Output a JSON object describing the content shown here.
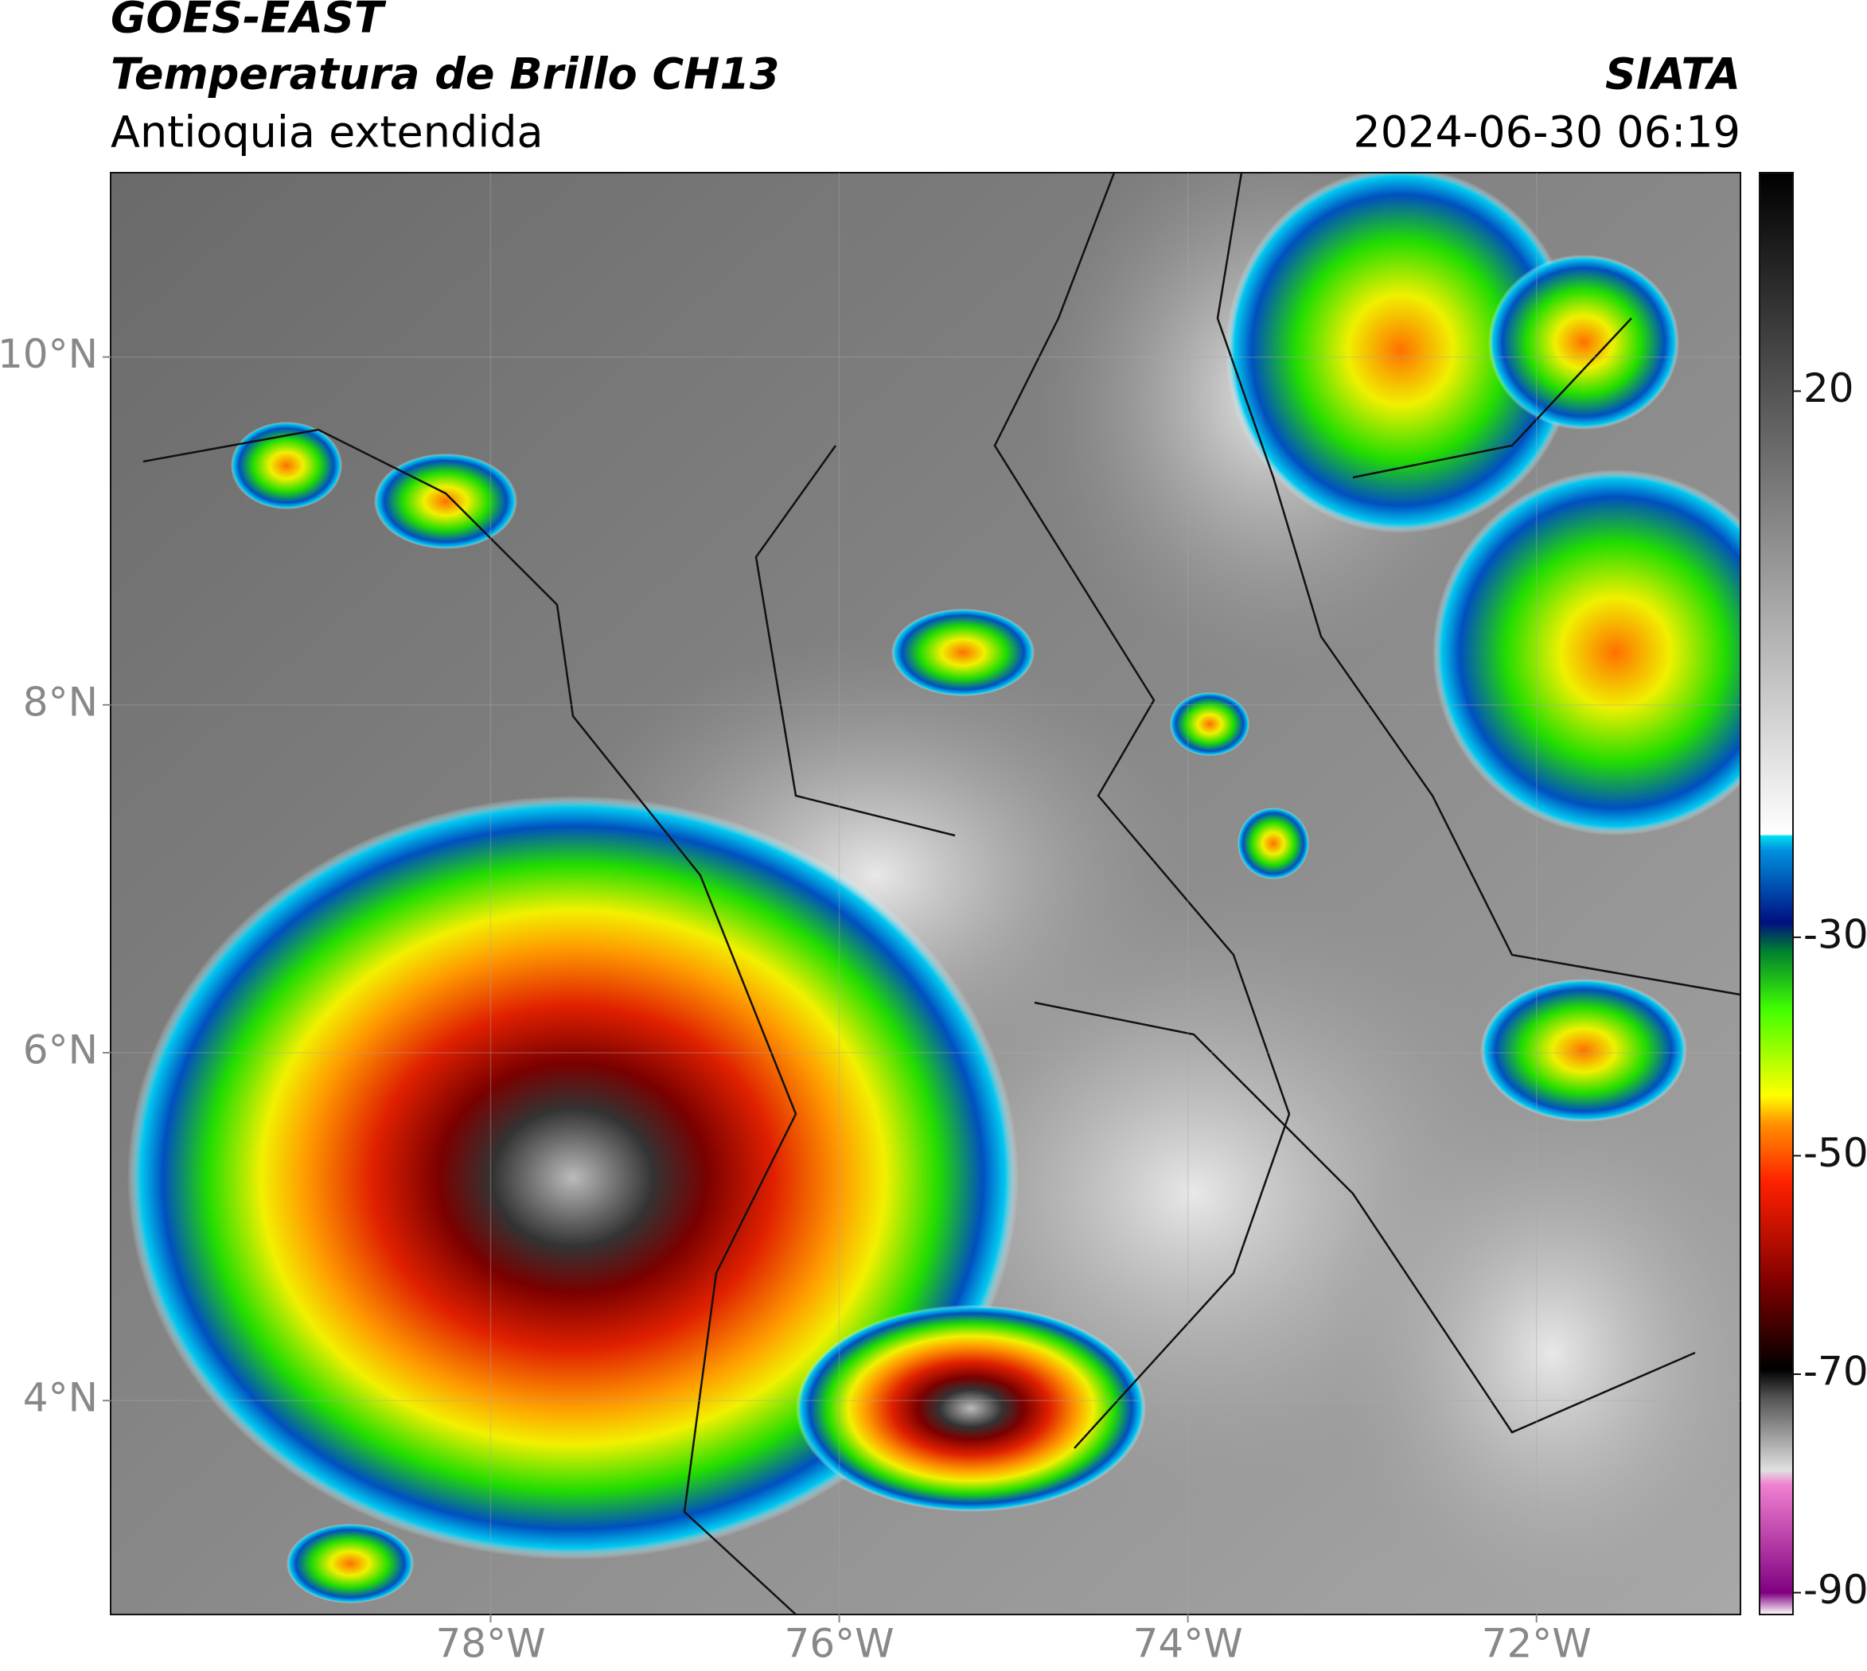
{
  "chart_data": {
    "type": "map",
    "title": "GOES-EAST",
    "subtitle": "Temperatura de Brillo CH13",
    "region": "Antioquia extendida",
    "source": "SIATA",
    "timestamp": "2024-06-30 06:19",
    "xlim": [
      -80.18,
      -70.83
    ],
    "ylim": [
      2.77,
      11.06
    ],
    "xticks": [
      {
        "value": -78,
        "label": "78°W"
      },
      {
        "value": -76,
        "label": "76°W"
      },
      {
        "value": -74,
        "label": "74°W"
      },
      {
        "value": -72,
        "label": "72°W"
      }
    ],
    "yticks": [
      {
        "value": 4,
        "label": "4°N"
      },
      {
        "value": 6,
        "label": "6°N"
      },
      {
        "value": 8,
        "label": "8°N"
      },
      {
        "value": 10,
        "label": "10°N"
      }
    ],
    "grid": true,
    "colorbar": {
      "lim": [
        -92,
        40
      ],
      "ticks": [
        20,
        -30,
        -50,
        -70,
        -90
      ]
    }
  }
}
